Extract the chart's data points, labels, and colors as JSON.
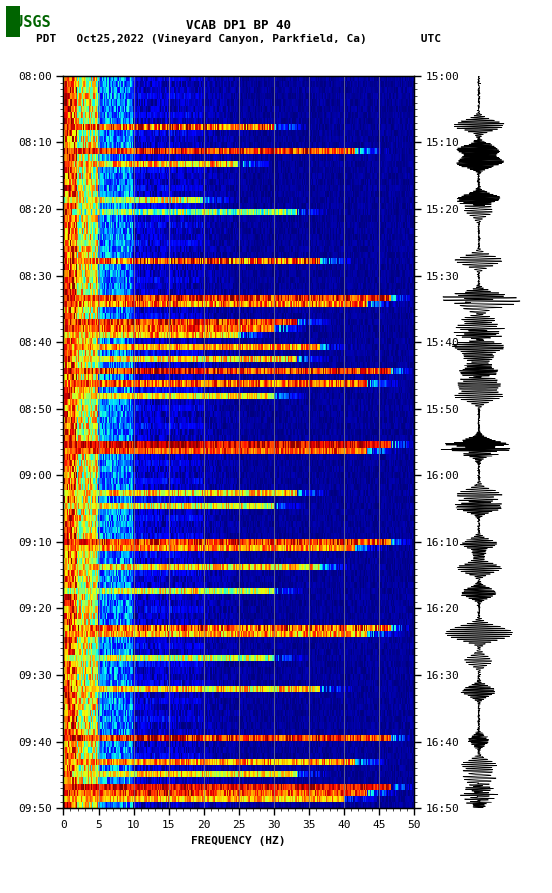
{
  "title_line1": "VCAB DP1 BP 40",
  "title_line2": "PDT   Oct25,2022 (Vineyard Canyon, Parkfield, Ca)        UTC",
  "xlabel": "FREQUENCY (HZ)",
  "freq_min": 0,
  "freq_max": 50,
  "left_time_labels": [
    "08:00",
    "08:10",
    "08:20",
    "08:30",
    "08:40",
    "08:50",
    "09:00",
    "09:10",
    "09:20",
    "09:30",
    "09:40",
    "09:50"
  ],
  "right_time_labels": [
    "15:00",
    "15:10",
    "15:20",
    "15:30",
    "15:40",
    "15:50",
    "16:00",
    "16:10",
    "16:20",
    "16:30",
    "16:40",
    "16:50"
  ],
  "vertical_grid_freqs": [
    5,
    10,
    15,
    20,
    25,
    30,
    35,
    40,
    45
  ],
  "freq_ticks": [
    0,
    5,
    10,
    15,
    20,
    25,
    30,
    35,
    40,
    45,
    50
  ],
  "n_time_bins": 120,
  "n_freq_bins": 300,
  "background_color": "#ffffff",
  "usgs_logo_color": "#006400",
  "title_fontsize": 9,
  "label_fontsize": 8,
  "tick_fontsize": 8,
  "fig_width": 5.52,
  "fig_height": 8.93
}
